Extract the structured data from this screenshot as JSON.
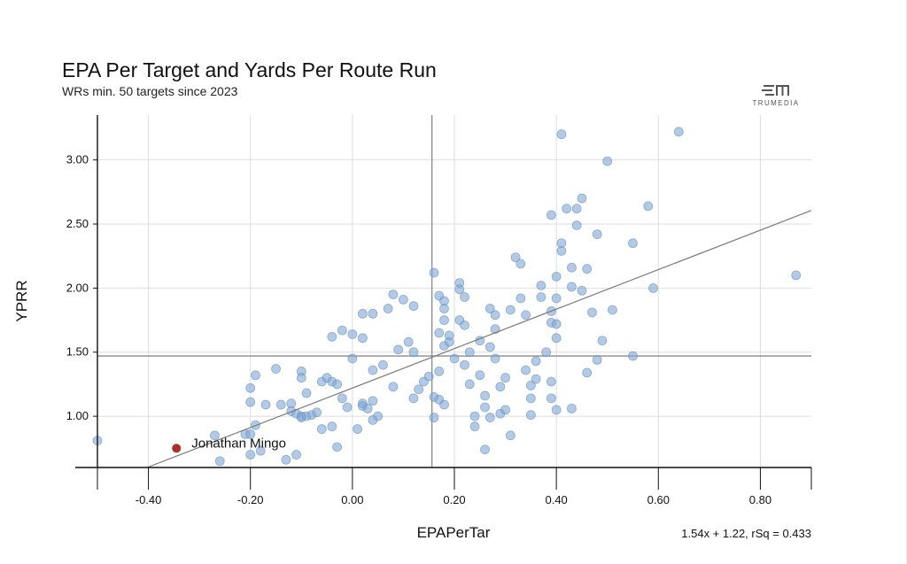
{
  "header": {
    "title": "EPA Per Target and Yards Per Route Run",
    "subtitle": "WRs min. 50 targets since 2023",
    "logo_text": "TRUMEDIA"
  },
  "regression_label": "1.54x + 1.22, rSq = 0.433",
  "colors": {
    "point": "#7fa7d3",
    "point_stroke": "#6a93c1",
    "highlight": "#a8322d",
    "grid": "#dedede",
    "axis": "#111111",
    "reference": "#8a8a8a"
  },
  "chart_data": {
    "type": "scatter",
    "title": "EPA Per Target and Yards Per Route Run",
    "subtitle": "WRs min. 50 targets since 2023",
    "xlabel": "EPAPerTar",
    "ylabel": "YPRR",
    "xlim": [
      -0.5,
      0.9
    ],
    "ylim": [
      0.6,
      3.35
    ],
    "x_ticks": [
      -0.4,
      -0.2,
      0.0,
      0.2,
      0.4,
      0.6,
      0.8
    ],
    "x_tick_labels": [
      "-0.40",
      "-0.20",
      "0.00",
      "0.20",
      "0.40",
      "0.60",
      "0.80"
    ],
    "y_ticks": [
      1.0,
      1.5,
      2.0,
      2.5,
      3.0
    ],
    "y_tick_labels": [
      "1.00",
      "1.50",
      "2.00",
      "2.50",
      "3.00"
    ],
    "grid": true,
    "reference_lines": {
      "x_mean": 0.156,
      "y_mean": 1.47
    },
    "trendline": {
      "slope": 1.54,
      "intercept": 1.22,
      "r_squared": 0.433,
      "label": "1.54x + 1.22, rSq = 0.433"
    },
    "highlight": {
      "name": "Jonathan Mingo",
      "x": -0.345,
      "y": 0.75
    },
    "points": [
      [
        -0.5,
        0.81
      ],
      [
        -0.27,
        0.85
      ],
      [
        -0.21,
        0.86
      ],
      [
        -0.2,
        0.86
      ],
      [
        -0.19,
        0.93
      ],
      [
        -0.2,
        1.11
      ],
      [
        -0.2,
        1.22
      ],
      [
        -0.19,
        1.32
      ],
      [
        -0.17,
        1.09
      ],
      [
        -0.15,
        1.37
      ],
      [
        -0.14,
        1.09
      ],
      [
        -0.12,
        1.1
      ],
      [
        -0.12,
        1.04
      ],
      [
        -0.11,
        1.02
      ],
      [
        -0.1,
        1.0
      ],
      [
        -0.1,
        0.99
      ],
      [
        -0.09,
        1.0
      ],
      [
        -0.1,
        1.35
      ],
      [
        -0.1,
        1.3
      ],
      [
        -0.09,
        1.18
      ],
      [
        -0.08,
        1.01
      ],
      [
        -0.07,
        1.03
      ],
      [
        -0.06,
        1.27
      ],
      [
        -0.05,
        1.3
      ],
      [
        -0.04,
        1.27
      ],
      [
        -0.03,
        1.25
      ],
      [
        -0.04,
        1.62
      ],
      [
        -0.02,
        1.67
      ],
      [
        -0.06,
        0.9
      ],
      [
        -0.04,
        0.92
      ],
      [
        -0.03,
        0.76
      ],
      [
        -0.02,
        1.14
      ],
      [
        -0.01,
        1.07
      ],
      [
        0.0,
        1.45
      ],
      [
        0.0,
        1.64
      ],
      [
        0.01,
        0.9
      ],
      [
        0.02,
        1.1
      ],
      [
        0.02,
        1.08
      ],
      [
        0.03,
        1.06
      ],
      [
        0.04,
        1.12
      ],
      [
        0.04,
        0.97
      ],
      [
        0.04,
        1.36
      ],
      [
        0.02,
        1.61
      ],
      [
        0.02,
        1.8
      ],
      [
        0.04,
        1.8
      ],
      [
        0.05,
        1.0
      ],
      [
        0.06,
        1.4
      ],
      [
        0.07,
        1.84
      ],
      [
        0.08,
        1.23
      ],
      [
        0.08,
        1.95
      ],
      [
        0.09,
        1.52
      ],
      [
        0.1,
        1.91
      ],
      [
        0.11,
        1.58
      ],
      [
        0.12,
        1.86
      ],
      [
        0.12,
        1.14
      ],
      [
        0.13,
        1.21
      ],
      [
        0.14,
        1.27
      ],
      [
        0.15,
        1.31
      ],
      [
        0.16,
        2.12
      ],
      [
        0.17,
        1.94
      ],
      [
        0.17,
        1.65
      ],
      [
        0.18,
        1.75
      ],
      [
        0.18,
        1.55
      ],
      [
        0.16,
        1.15
      ],
      [
        0.17,
        1.13
      ],
      [
        0.16,
        0.99
      ],
      [
        0.17,
        1.35
      ],
      [
        0.18,
        1.09
      ],
      [
        0.18,
        1.9
      ],
      [
        0.18,
        1.84
      ],
      [
        0.19,
        1.58
      ],
      [
        0.19,
        1.63
      ],
      [
        0.2,
        1.45
      ],
      [
        0.21,
        2.04
      ],
      [
        0.21,
        1.75
      ],
      [
        0.21,
        1.99
      ],
      [
        0.22,
        1.93
      ],
      [
        0.22,
        1.71
      ],
      [
        0.22,
        1.4
      ],
      [
        0.23,
        1.5
      ],
      [
        0.23,
        1.25
      ],
      [
        0.24,
        0.92
      ],
      [
        0.24,
        1.0
      ],
      [
        0.25,
        1.59
      ],
      [
        0.25,
        1.32
      ],
      [
        0.26,
        1.16
      ],
      [
        0.26,
        1.07
      ],
      [
        0.27,
        1.54
      ],
      [
        0.27,
        1.84
      ],
      [
        0.28,
        1.79
      ],
      [
        0.28,
        1.68
      ],
      [
        0.28,
        1.45
      ],
      [
        0.29,
        1.23
      ],
      [
        0.29,
        1.02
      ],
      [
        0.3,
        1.05
      ],
      [
        0.3,
        1.3
      ],
      [
        0.26,
        0.74
      ],
      [
        0.27,
        0.99
      ],
      [
        0.31,
        1.83
      ],
      [
        0.32,
        2.24
      ],
      [
        0.33,
        2.19
      ],
      [
        0.33,
        1.92
      ],
      [
        0.34,
        1.79
      ],
      [
        0.34,
        1.36
      ],
      [
        0.35,
        1.01
      ],
      [
        0.35,
        1.24
      ],
      [
        0.35,
        1.14
      ],
      [
        0.36,
        1.29
      ],
      [
        0.37,
        2.02
      ],
      [
        0.37,
        1.93
      ],
      [
        0.36,
        1.43
      ],
      [
        0.38,
        1.5
      ],
      [
        0.39,
        1.27
      ],
      [
        0.39,
        1.14
      ],
      [
        0.39,
        1.73
      ],
      [
        0.39,
        1.82
      ],
      [
        0.39,
        2.57
      ],
      [
        0.4,
        2.09
      ],
      [
        0.4,
        1.92
      ],
      [
        0.4,
        1.72
      ],
      [
        0.4,
        1.61
      ],
      [
        0.4,
        1.05
      ],
      [
        0.41,
        2.35
      ],
      [
        0.41,
        2.29
      ],
      [
        0.41,
        3.2
      ],
      [
        0.42,
        2.62
      ],
      [
        0.43,
        2.16
      ],
      [
        0.43,
        2.01
      ],
      [
        0.43,
        1.06
      ],
      [
        0.44,
        2.62
      ],
      [
        0.44,
        2.49
      ],
      [
        0.45,
        2.7
      ],
      [
        0.45,
        1.98
      ],
      [
        0.46,
        2.15
      ],
      [
        0.46,
        1.34
      ],
      [
        0.47,
        1.81
      ],
      [
        0.48,
        1.44
      ],
      [
        0.48,
        2.42
      ],
      [
        0.49,
        1.59
      ],
      [
        0.5,
        2.99
      ],
      [
        0.51,
        1.83
      ],
      [
        0.55,
        2.35
      ],
      [
        0.55,
        1.47
      ],
      [
        0.58,
        2.64
      ],
      [
        0.59,
        2.0
      ],
      [
        0.64,
        3.22
      ],
      [
        0.87,
        2.1
      ],
      [
        0.31,
        0.85
      ],
      [
        0.12,
        1.5
      ],
      [
        -0.26,
        0.65
      ],
      [
        -0.2,
        0.7
      ],
      [
        -0.18,
        0.73
      ],
      [
        -0.13,
        0.66
      ],
      [
        -0.11,
        0.7
      ]
    ]
  }
}
